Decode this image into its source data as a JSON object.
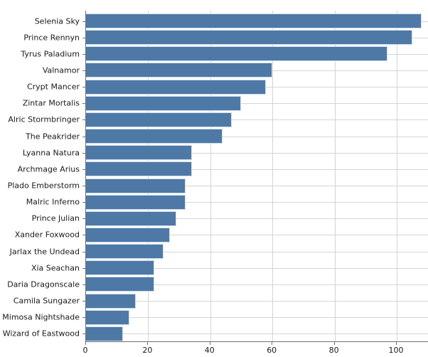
{
  "chart_data": {
    "type": "bar",
    "orientation": "horizontal",
    "title": "",
    "xlabel": "",
    "ylabel": "",
    "categories": [
      "Selenia Sky",
      "Prince Rennyn",
      "Tyrus Paladium",
      "Valnamor",
      "Crypt Mancer",
      "Zintar Mortalis",
      "Alric Stormbringer",
      "The Peakrider",
      "Lyanna Natura",
      "Archmage Arius",
      "Plado Emberstorm",
      "Malric Inferno",
      "Prince Julian",
      "Xander Foxwood",
      "Jarlax the Undead",
      "Xia Seachan",
      "Daria Dragonscale",
      "Camila Sungazer",
      "Mimosa Nightshade",
      "Wizard of Eastwood"
    ],
    "values": [
      108,
      105,
      97,
      60,
      58,
      50,
      47,
      44,
      34,
      34,
      32,
      32,
      29,
      27,
      25,
      22,
      22,
      16,
      14,
      12
    ],
    "x_ticks": [
      0,
      20,
      40,
      60,
      80,
      100
    ],
    "xlim": [
      0,
      110.3
    ],
    "grid": true,
    "legend": false,
    "colors": {
      "bar_fill": "#4e79a7",
      "bar_edge": "#cfdcec",
      "grid": "#d4d4d4",
      "spine": "#707070",
      "text": "#191919",
      "background": "#ffffff"
    }
  }
}
